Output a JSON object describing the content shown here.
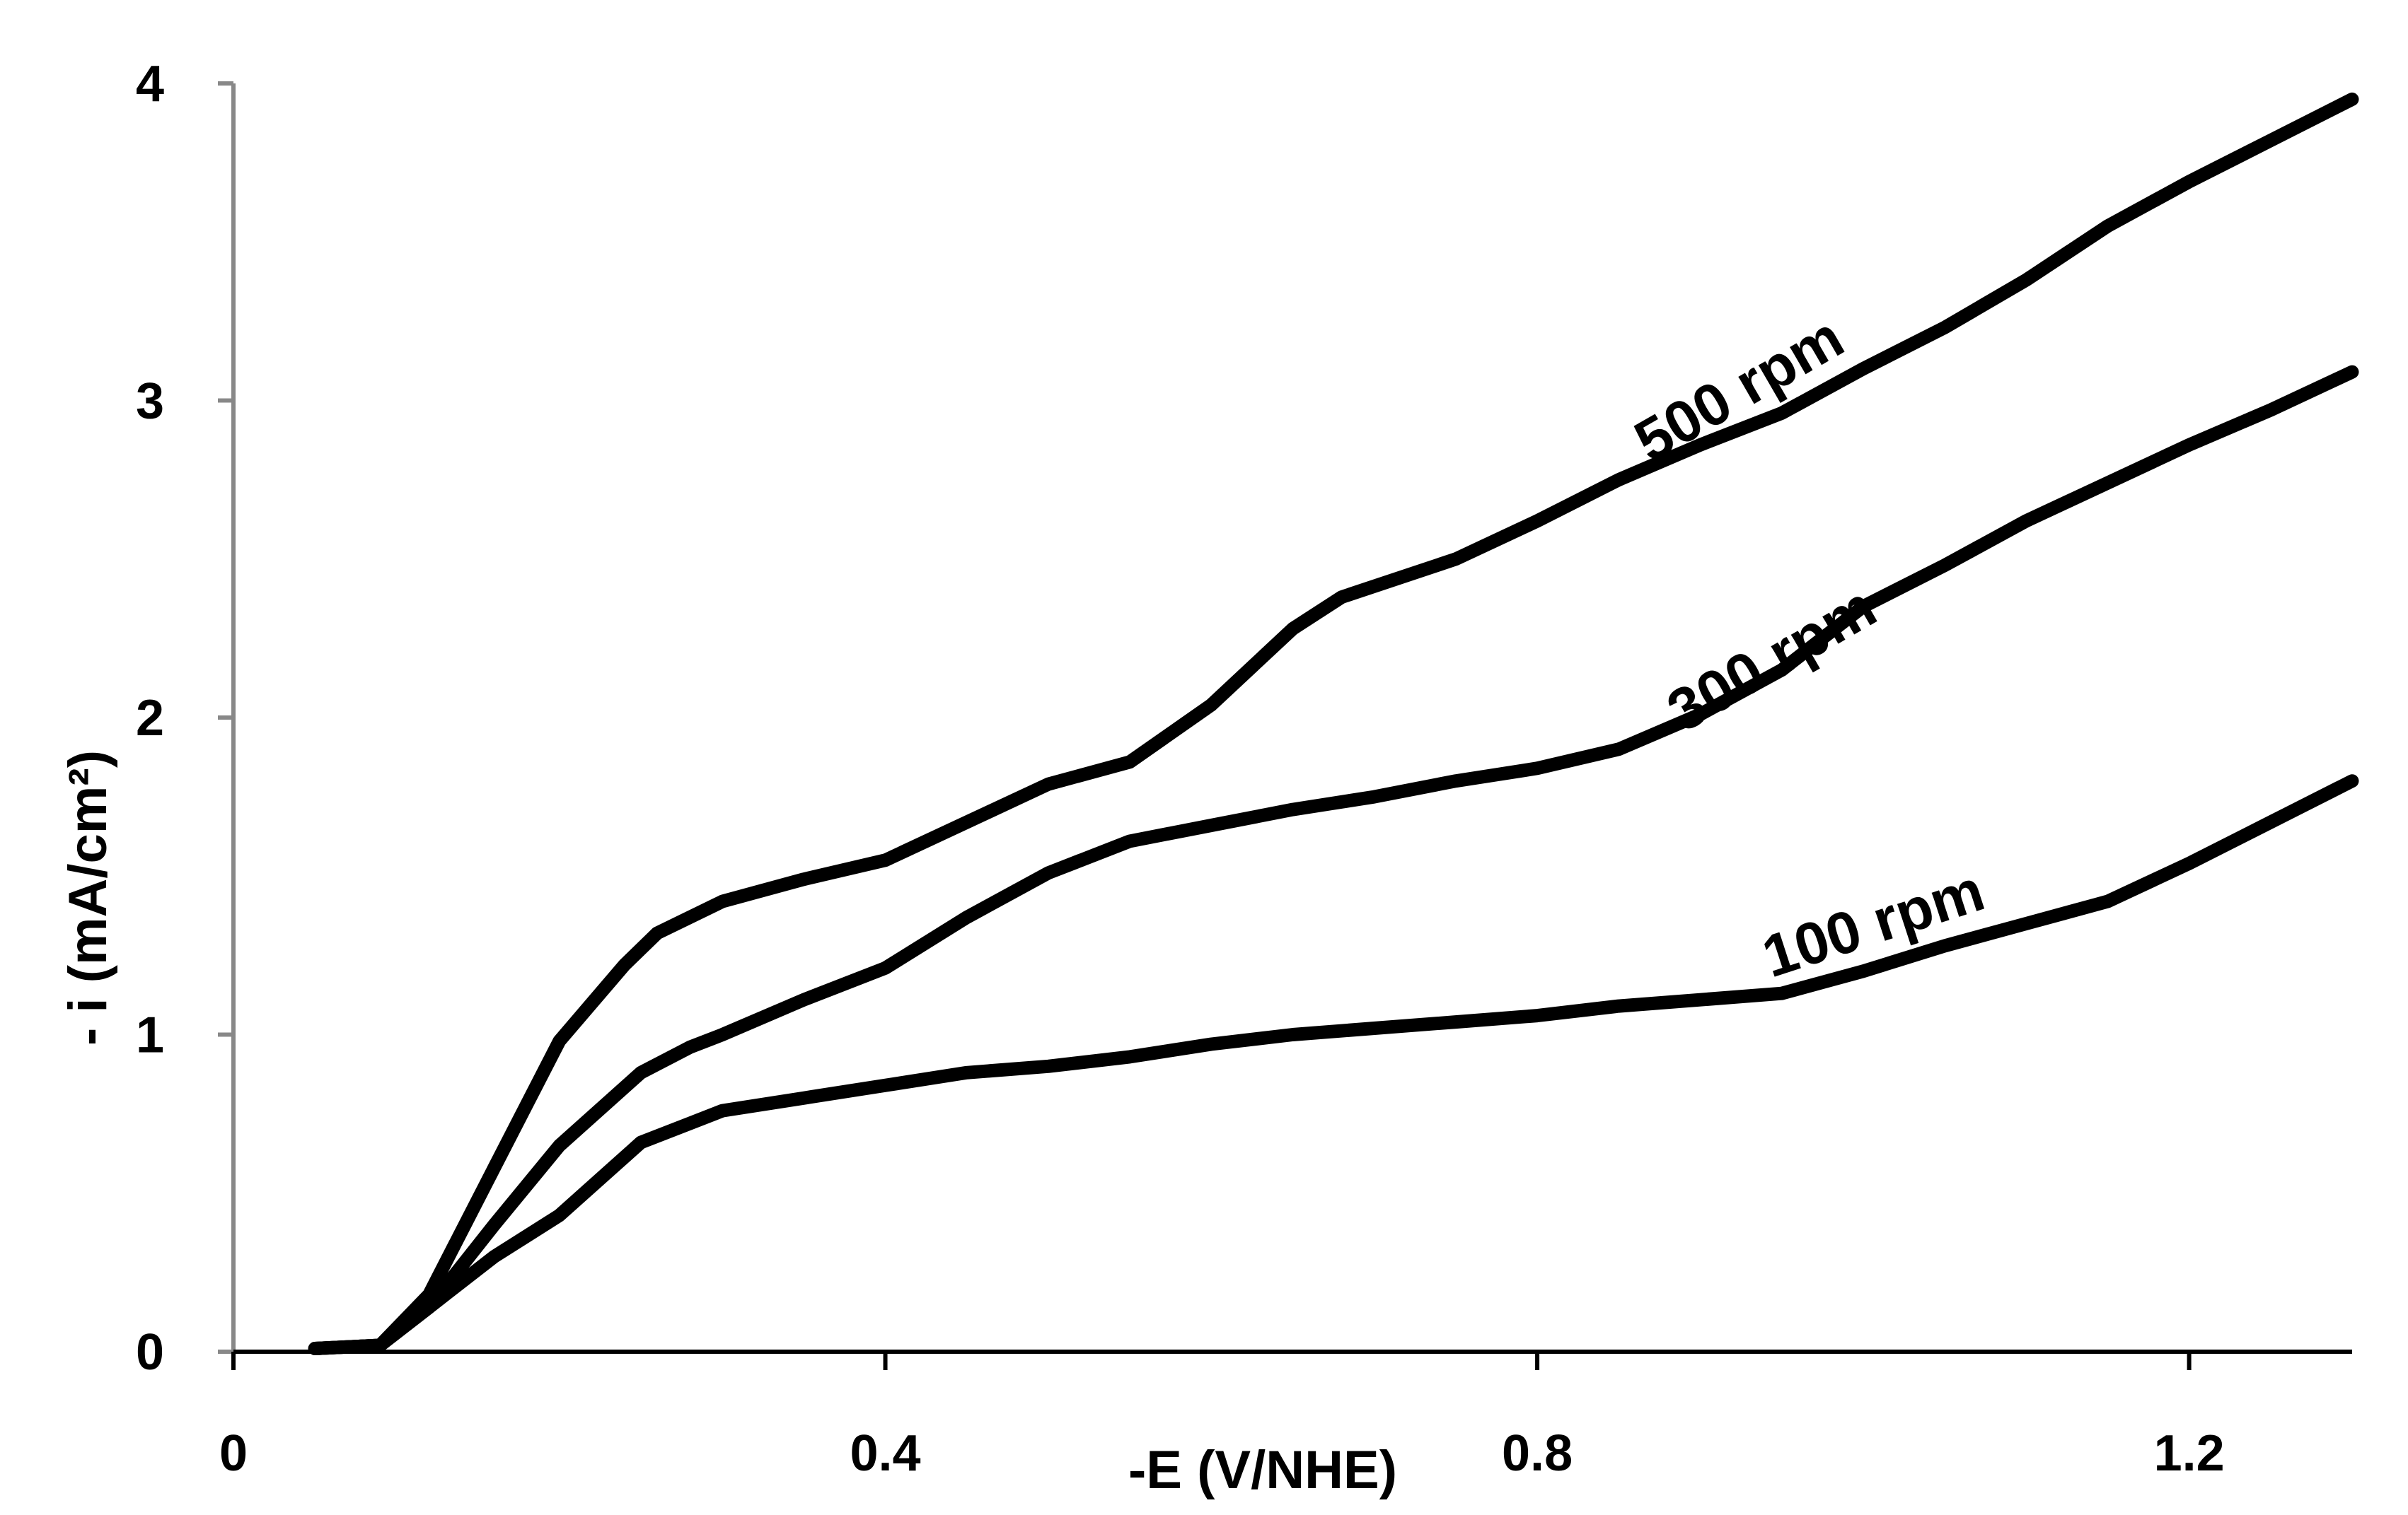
{
  "chart_data": {
    "type": "line",
    "title": "",
    "xlabel": "-E (V/NHE)",
    "ylabel": "- i (mA/cm²)",
    "xlim": [
      0,
      1.3
    ],
    "ylim": [
      0,
      4
    ],
    "xticks": [
      0,
      0.4,
      0.8,
      1.2
    ],
    "xtick_labels": [
      "0",
      "0.4",
      "0.8",
      "1.2"
    ],
    "yticks": [
      0,
      1,
      2,
      3,
      4
    ],
    "ytick_labels": [
      "0",
      "1",
      "2",
      "3",
      "4"
    ],
    "grid": false,
    "line_color": "#000000",
    "axis_color": "#888888",
    "series": [
      {
        "name": "500 rpm",
        "label": "500 rpm",
        "x": [
          0.05,
          0.09,
          0.12,
          0.16,
          0.2,
          0.24,
          0.26,
          0.3,
          0.35,
          0.4,
          0.45,
          0.5,
          0.55,
          0.6,
          0.65,
          0.68,
          0.75,
          0.8,
          0.85,
          0.9,
          0.95,
          1.0,
          1.05,
          1.1,
          1.15,
          1.2,
          1.25,
          1.3
        ],
        "y": [
          0.01,
          0.02,
          0.18,
          0.58,
          0.98,
          1.22,
          1.32,
          1.42,
          1.49,
          1.55,
          1.67,
          1.79,
          1.86,
          2.04,
          2.28,
          2.38,
          2.5,
          2.62,
          2.75,
          2.86,
          2.96,
          3.1,
          3.23,
          3.38,
          3.55,
          3.69,
          3.82,
          3.95
        ]
      },
      {
        "name": "300 rpm",
        "label": "300 rpm",
        "x": [
          0.05,
          0.09,
          0.12,
          0.16,
          0.2,
          0.25,
          0.28,
          0.3,
          0.35,
          0.4,
          0.45,
          0.5,
          0.55,
          0.6,
          0.65,
          0.7,
          0.75,
          0.8,
          0.85,
          0.9,
          0.95,
          1.0,
          1.05,
          1.1,
          1.15,
          1.2,
          1.25,
          1.3
        ],
        "y": [
          0.01,
          0.02,
          0.14,
          0.4,
          0.65,
          0.88,
          0.96,
          1.0,
          1.11,
          1.21,
          1.37,
          1.51,
          1.61,
          1.66,
          1.71,
          1.75,
          1.8,
          1.84,
          1.9,
          2.01,
          2.15,
          2.35,
          2.48,
          2.62,
          2.74,
          2.86,
          2.97,
          3.09
        ]
      },
      {
        "name": "100 rpm",
        "label": "100 rpm",
        "x": [
          0.05,
          0.09,
          0.12,
          0.16,
          0.2,
          0.25,
          0.28,
          0.3,
          0.35,
          0.4,
          0.45,
          0.5,
          0.55,
          0.6,
          0.65,
          0.7,
          0.75,
          0.8,
          0.85,
          0.9,
          0.95,
          1.0,
          1.05,
          1.1,
          1.15,
          1.2,
          1.25,
          1.3
        ],
        "y": [
          0.01,
          0.02,
          0.14,
          0.3,
          0.43,
          0.66,
          0.72,
          0.76,
          0.8,
          0.84,
          0.88,
          0.9,
          0.93,
          0.97,
          1.0,
          1.02,
          1.04,
          1.06,
          1.09,
          1.11,
          1.13,
          1.2,
          1.28,
          1.35,
          1.42,
          1.54,
          1.67,
          1.8
        ]
      }
    ],
    "annotations": [
      {
        "text": "500 rpm",
        "series": "500 rpm",
        "x": 0.93,
        "y": 2.98,
        "angle": -30
      },
      {
        "text": "300 rpm",
        "series": "300 rpm",
        "x": 0.95,
        "y": 2.13,
        "angle": -30
      },
      {
        "text": "100 rpm",
        "series": "100 rpm",
        "x": 1.01,
        "y": 1.29,
        "angle": -18
      }
    ]
  }
}
